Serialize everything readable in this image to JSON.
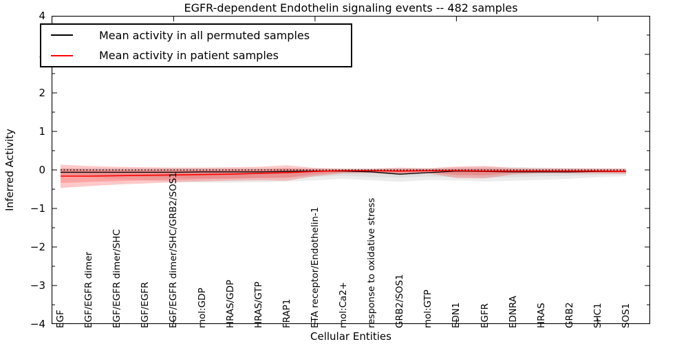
{
  "figure": {
    "title": "EGFR-dependent Endothelin signaling events -- 482 samples",
    "xlabel": "Cellular Entities",
    "ylabel": "Inferred Activity"
  },
  "legend": {
    "items": [
      {
        "label": "Mean activity in all permuted samples",
        "color": "#000000"
      },
      {
        "label": "Mean activity in patient samples",
        "color": "#ff0000"
      }
    ]
  },
  "chart_data": {
    "type": "line",
    "title": "EGFR-dependent Endothelin signaling events -- 482 samples",
    "xlabel": "Cellular Entities",
    "ylabel": "Inferred Activity",
    "ylim": [
      -4,
      4
    ],
    "grid": false,
    "legend_position": "upper left",
    "yticks": [
      4,
      3,
      2,
      1,
      0,
      -1,
      -2,
      -3,
      -4
    ],
    "ytick_labels": [
      "4",
      "3",
      "2",
      "1",
      "0",
      "−1",
      "−2",
      "−3",
      "−4"
    ],
    "xtick_major_category_indices": [
      4,
      9,
      14,
      19
    ],
    "categories": [
      "EGF",
      "EGF/EGFR dimer",
      "EGF/EGFR dimer/SHC",
      "EGF/EGFR",
      "EGF/EGFR dimer/SHC/GRB2/SOS1",
      "mol:GDP",
      "HRAS/GDP",
      "HRAS/GTP",
      "FRAP1",
      "ETA receptor/Endothelin-1",
      "mol:Ca2+",
      "response to oxidative stress",
      "GRB2/SOS1",
      "mol:GTP",
      "EDN1",
      "EGFR",
      "EDNRA",
      "HRAS",
      "GRB2",
      "SHC1",
      "SOS1"
    ],
    "series": [
      {
        "name": "Mean activity in all permuted samples",
        "color": "#000000",
        "style": "solid",
        "width": 1.3,
        "values": [
          -0.06,
          -0.06,
          -0.06,
          -0.06,
          -0.06,
          -0.05,
          -0.05,
          -0.05,
          -0.04,
          -0.03,
          -0.03,
          -0.05,
          -0.11,
          -0.07,
          -0.03,
          -0.04,
          -0.05,
          -0.05,
          -0.05,
          -0.04,
          -0.04
        ]
      },
      {
        "name": "Mean activity in patient samples",
        "color": "#ff0000",
        "style": "solid",
        "width": 1.6,
        "values": [
          -0.16,
          -0.16,
          -0.15,
          -0.14,
          -0.13,
          -0.12,
          -0.11,
          -0.09,
          -0.07,
          -0.04,
          -0.02,
          -0.02,
          -0.03,
          -0.02,
          -0.02,
          -0.03,
          -0.03,
          -0.03,
          -0.03,
          -0.03,
          -0.04
        ]
      },
      {
        "name": "zero-reference",
        "color": "#000000",
        "style": "dotted",
        "width": 1.5,
        "values": [
          0,
          0,
          0,
          0,
          0,
          0,
          0,
          0,
          0,
          0,
          0,
          0,
          0,
          0,
          0,
          0,
          0,
          0,
          0,
          0,
          0
        ]
      }
    ],
    "bands": [
      {
        "name": "permuted-band-outer",
        "color": "rgba(0,0,0,0.075)",
        "top": [
          0.05,
          0.05,
          0.05,
          0.05,
          0.05,
          0.05,
          0.05,
          0.05,
          0.05,
          0.05,
          0.04,
          0.04,
          0.05,
          0.05,
          0.07,
          0.09,
          0.08,
          0.06,
          0.05,
          0.04,
          0.03
        ],
        "bottom": [
          -0.16,
          -0.19,
          -0.23,
          -0.27,
          -0.31,
          -0.33,
          -0.33,
          -0.32,
          -0.3,
          -0.27,
          -0.23,
          -0.27,
          -0.31,
          -0.26,
          -0.27,
          -0.3,
          -0.28,
          -0.26,
          -0.23,
          -0.19,
          -0.16
        ]
      },
      {
        "name": "permuted-band-inner",
        "color": "rgba(0,0,0,0.06)",
        "top": [
          0.03,
          0.03,
          0.03,
          0.03,
          0.03,
          0.03,
          0.03,
          0.03,
          0.03,
          0.03,
          0.02,
          0.02,
          0.03,
          0.03,
          0.04,
          0.05,
          0.05,
          0.04,
          0.03,
          0.02,
          0.02
        ],
        "bottom": [
          -0.11,
          -0.13,
          -0.15,
          -0.18,
          -0.2,
          -0.22,
          -0.22,
          -0.21,
          -0.2,
          -0.18,
          -0.15,
          -0.18,
          -0.2,
          -0.17,
          -0.18,
          -0.2,
          -0.19,
          -0.17,
          -0.15,
          -0.13,
          -0.11
        ]
      },
      {
        "name": "patient-band-outer",
        "color": "rgba(255,0,0,0.21)",
        "top": [
          0.14,
          0.1,
          0.08,
          0.07,
          0.06,
          0.06,
          0.07,
          0.08,
          0.12,
          0.05,
          0.03,
          0.03,
          0.06,
          0.04,
          0.09,
          0.1,
          0.05,
          0.04,
          0.04,
          0.04,
          0.04
        ],
        "bottom": [
          -0.47,
          -0.42,
          -0.38,
          -0.35,
          -0.32,
          -0.3,
          -0.28,
          -0.27,
          -0.28,
          -0.16,
          -0.09,
          -0.08,
          -0.12,
          -0.09,
          -0.21,
          -0.22,
          -0.12,
          -0.09,
          -0.09,
          -0.09,
          -0.1
        ]
      },
      {
        "name": "patient-band-inner",
        "color": "rgba(255,0,0,0.18)",
        "top": [
          0.03,
          0.01,
          0.0,
          0.0,
          0.0,
          0.0,
          0.01,
          0.01,
          0.04,
          0.01,
          0.0,
          0.0,
          0.01,
          0.01,
          0.03,
          0.03,
          0.01,
          0.0,
          0.0,
          0.0,
          0.0
        ],
        "bottom": [
          -0.34,
          -0.31,
          -0.29,
          -0.27,
          -0.26,
          -0.24,
          -0.23,
          -0.21,
          -0.2,
          -0.11,
          -0.06,
          -0.05,
          -0.08,
          -0.06,
          -0.13,
          -0.14,
          -0.08,
          -0.06,
          -0.06,
          -0.06,
          -0.07
        ]
      }
    ]
  }
}
